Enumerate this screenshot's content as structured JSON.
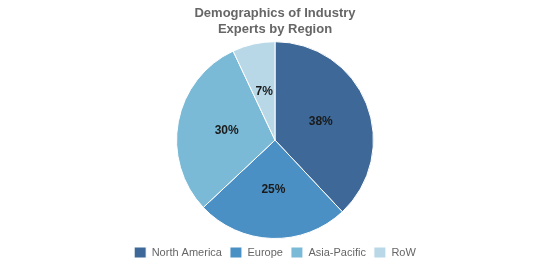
{
  "chart_data": {
    "type": "pie",
    "title": [
      "Demographics of Industry",
      "Experts by Region"
    ],
    "categories": [
      "North America",
      "Europe",
      "Asia-Pacific",
      "RoW"
    ],
    "values": [
      38,
      25,
      30,
      7
    ],
    "value_labels": [
      "38%",
      "25%",
      "30%",
      "7%"
    ],
    "data_labels": true,
    "colors": [
      "#3D6897",
      "#4A90C4",
      "#7BBAD6",
      "#B8D8E8"
    ],
    "legend": "bottom"
  }
}
